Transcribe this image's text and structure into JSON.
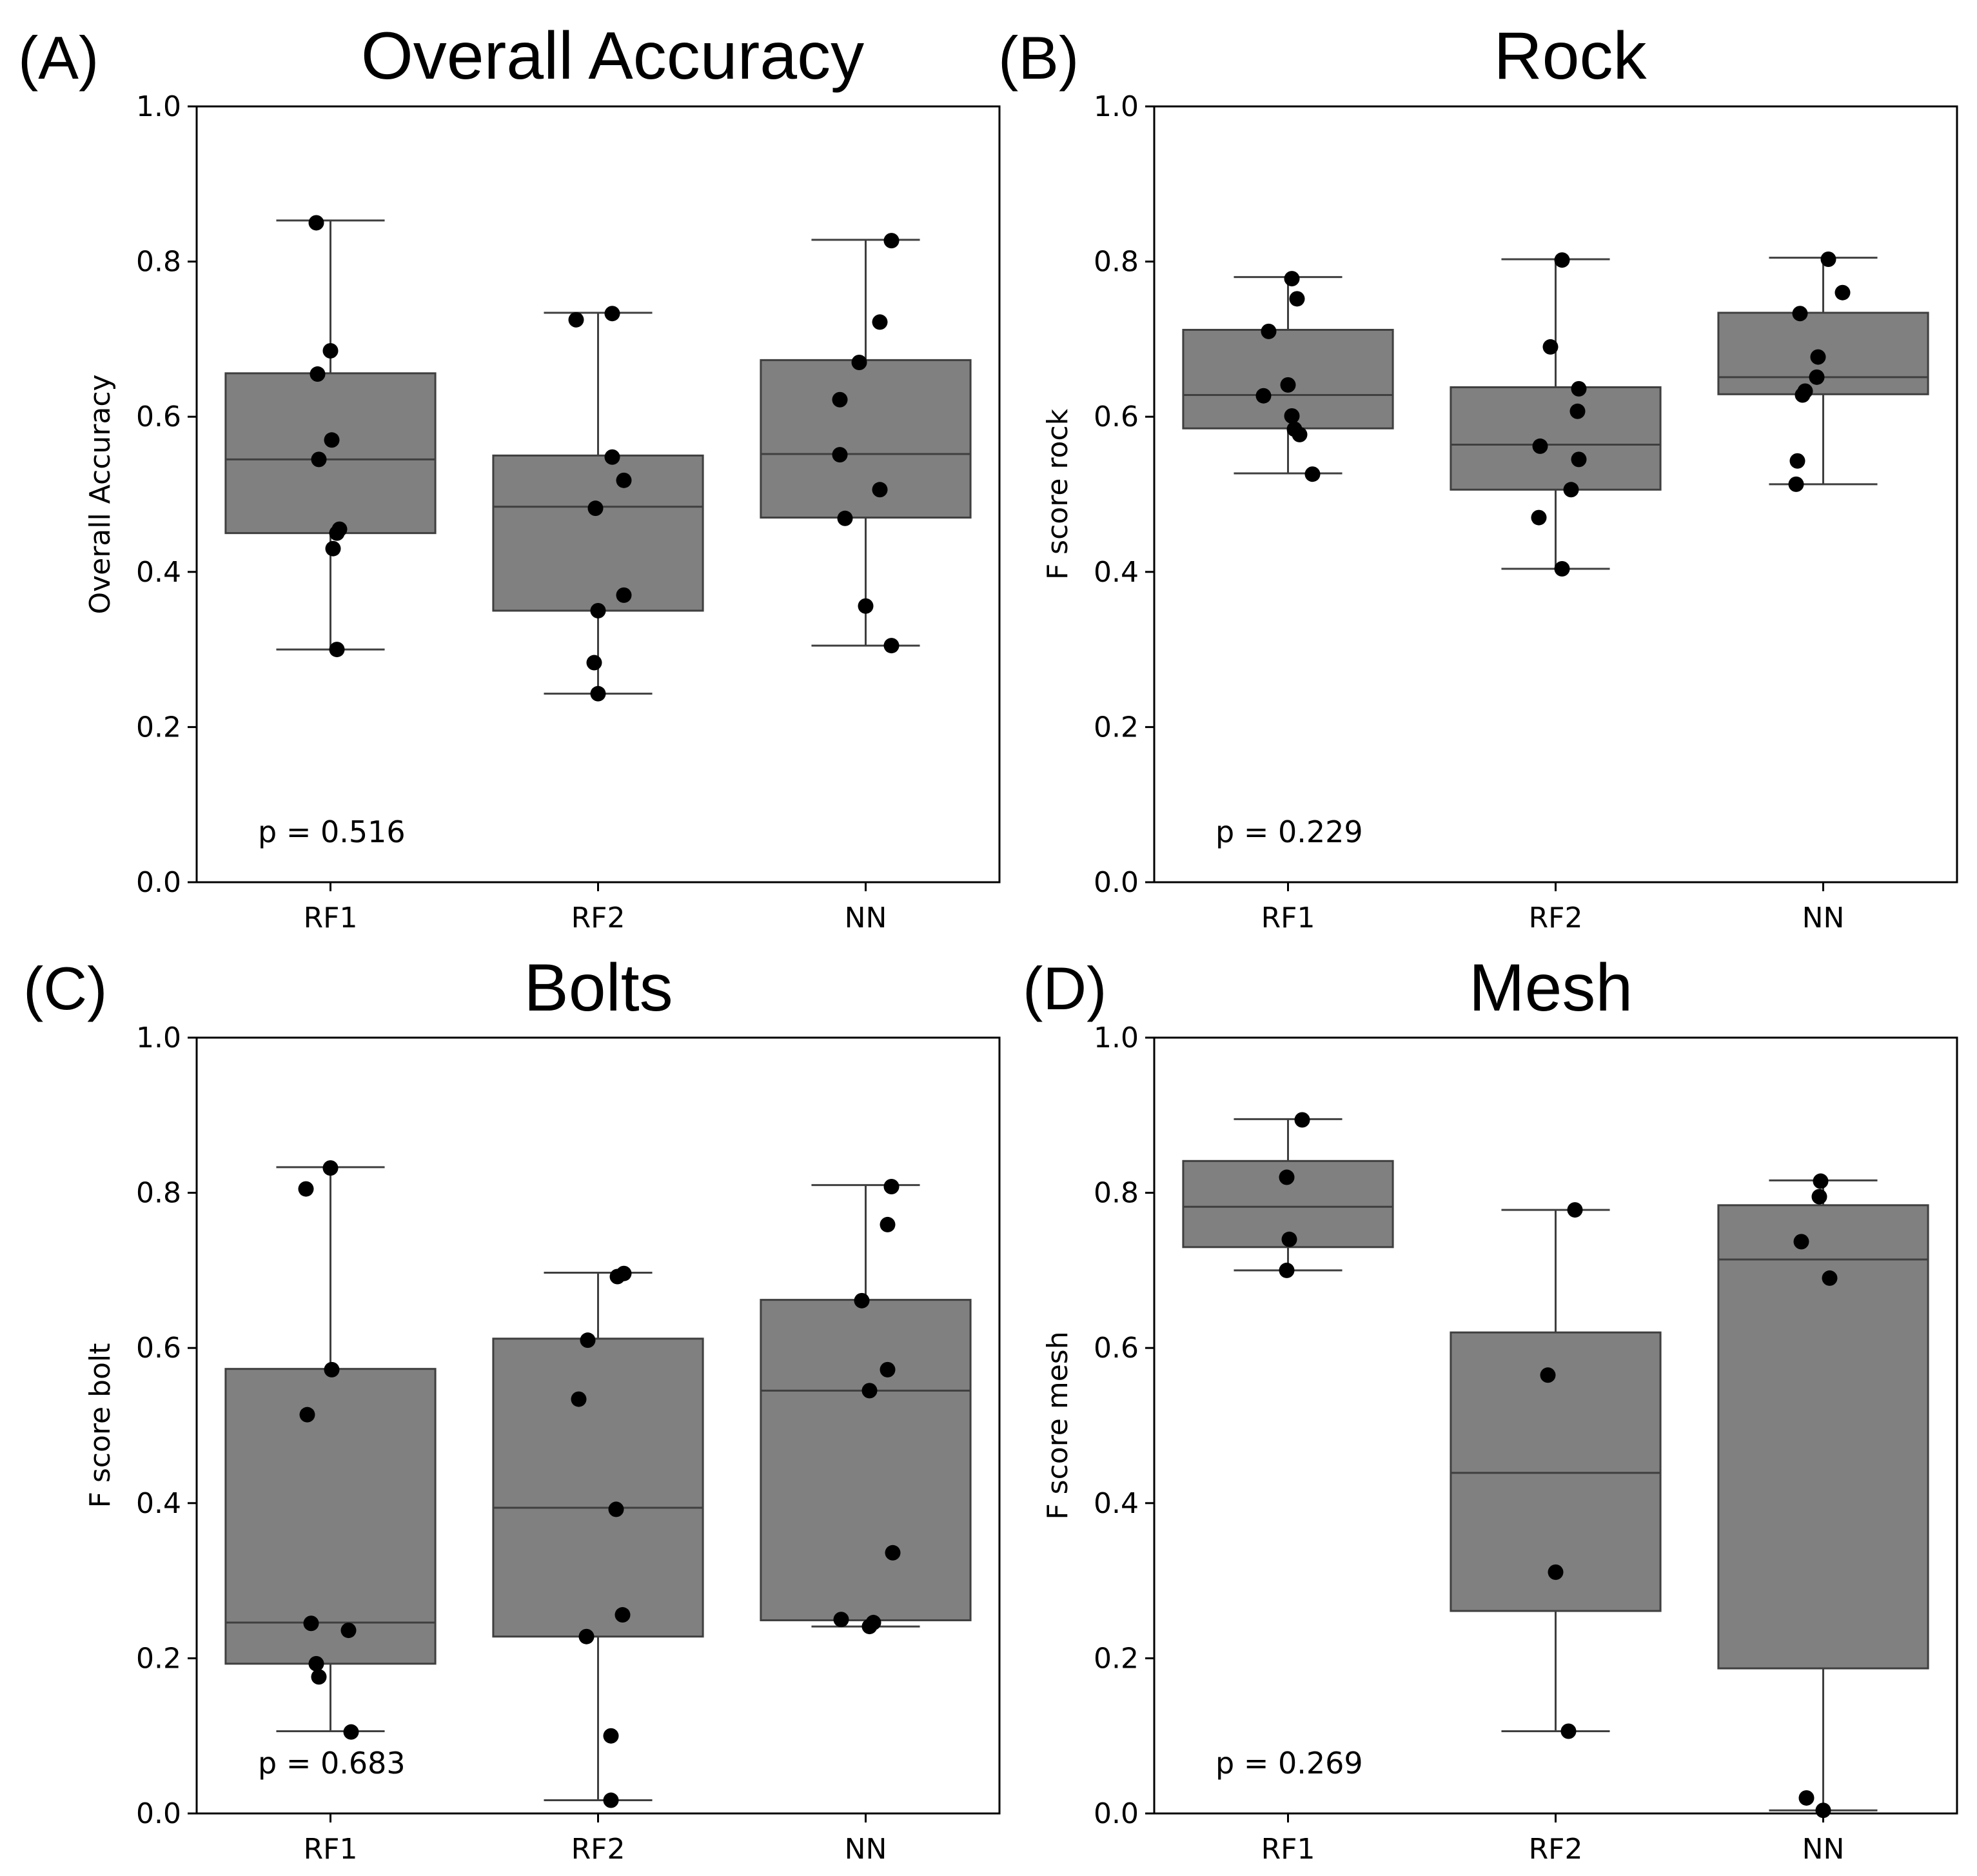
{
  "chart_data": [
    {
      "type": "box",
      "panel_letter": "(A)",
      "title": "Overall Accuracy",
      "ylabel": "Overall Accuracy",
      "ylim": [
        0,
        1
      ],
      "yticks": [
        "0.0",
        "0.2",
        "0.4",
        "0.6",
        "0.8",
        "1.0"
      ],
      "categories": [
        "RF1",
        "RF2",
        "NN"
      ],
      "annotation": "p = 0.516",
      "boxes": [
        {
          "category": "RF1",
          "whisker_low": 0.3,
          "q1": 0.45,
          "median": 0.545,
          "q3": 0.656,
          "whisker_high": 0.853,
          "points": [
            0.85,
            0.685,
            0.655,
            0.57,
            0.545,
            0.455,
            0.45,
            0.43,
            0.3
          ]
        },
        {
          "category": "RF2",
          "whisker_low": 0.243,
          "q1": 0.35,
          "median": 0.484,
          "q3": 0.55,
          "whisker_high": 0.734,
          "points": [
            0.733,
            0.725,
            0.548,
            0.518,
            0.482,
            0.37,
            0.35,
            0.283,
            0.243
          ]
        },
        {
          "category": "NN",
          "whisker_low": 0.305,
          "q1": 0.47,
          "median": 0.552,
          "q3": 0.673,
          "whisker_high": 0.828,
          "points": [
            0.827,
            0.722,
            0.67,
            0.622,
            0.551,
            0.506,
            0.469,
            0.356,
            0.305
          ]
        }
      ]
    },
    {
      "type": "box",
      "panel_letter": "(B)",
      "title": "Rock",
      "ylabel": "F score rock",
      "ylim": [
        0,
        1
      ],
      "yticks": [
        "0.0",
        "0.2",
        "0.4",
        "0.6",
        "0.8",
        "1.0"
      ],
      "categories": [
        "RF1",
        "RF2",
        "NN"
      ],
      "annotation": "p = 0.229",
      "boxes": [
        {
          "category": "RF1",
          "whisker_low": 0.527,
          "q1": 0.585,
          "median": 0.628,
          "q3": 0.712,
          "whisker_high": 0.78,
          "points": [
            0.778,
            0.752,
            0.71,
            0.641,
            0.627,
            0.601,
            0.584,
            0.577,
            0.526
          ]
        },
        {
          "category": "RF2",
          "whisker_low": 0.404,
          "q1": 0.506,
          "median": 0.564,
          "q3": 0.638,
          "whisker_high": 0.803,
          "points": [
            0.802,
            0.69,
            0.636,
            0.607,
            0.562,
            0.545,
            0.506,
            0.47,
            0.404
          ]
        },
        {
          "category": "NN",
          "whisker_low": 0.513,
          "q1": 0.629,
          "median": 0.651,
          "q3": 0.734,
          "whisker_high": 0.805,
          "points": [
            0.803,
            0.76,
            0.733,
            0.677,
            0.651,
            0.633,
            0.628,
            0.543,
            0.513
          ]
        }
      ]
    },
    {
      "type": "box",
      "panel_letter": "(C)",
      "title": "Bolts",
      "ylabel": "F score bolt",
      "ylim": [
        0,
        1
      ],
      "yticks": [
        "0.0",
        "0.2",
        "0.4",
        "0.6",
        "0.8",
        "1.0"
      ],
      "categories": [
        "RF1",
        "RF2",
        "NN"
      ],
      "annotation": "p = 0.683",
      "boxes": [
        {
          "category": "RF1",
          "whisker_low": 0.106,
          "q1": 0.193,
          "median": 0.246,
          "q3": 0.573,
          "whisker_high": 0.833,
          "points": [
            0.832,
            0.805,
            0.572,
            0.514,
            0.245,
            0.236,
            0.193,
            0.176,
            0.105
          ]
        },
        {
          "category": "RF2",
          "whisker_low": 0.017,
          "q1": 0.228,
          "median": 0.394,
          "q3": 0.612,
          "whisker_high": 0.697,
          "points": [
            0.696,
            0.692,
            0.61,
            0.534,
            0.392,
            0.256,
            0.228,
            0.1,
            0.017
          ]
        },
        {
          "category": "NN",
          "whisker_low": 0.241,
          "q1": 0.249,
          "median": 0.545,
          "q3": 0.662,
          "whisker_high": 0.81,
          "points": [
            0.808,
            0.759,
            0.661,
            0.572,
            0.545,
            0.336,
            0.25,
            0.246,
            0.241
          ]
        }
      ]
    },
    {
      "type": "box",
      "panel_letter": "(D)",
      "title": "Mesh",
      "ylabel": "F score mesh",
      "ylim": [
        0,
        1
      ],
      "yticks": [
        "0.0",
        "0.2",
        "0.4",
        "0.6",
        "0.8",
        "1.0"
      ],
      "categories": [
        "RF1",
        "RF2",
        "NN"
      ],
      "annotation": "p = 0.269",
      "boxes": [
        {
          "category": "RF1",
          "whisker_low": 0.7,
          "q1": 0.73,
          "median": 0.782,
          "q3": 0.841,
          "whisker_high": 0.895,
          "points": [
            0.894,
            0.82,
            0.74,
            0.7
          ]
        },
        {
          "category": "RF2",
          "whisker_low": 0.106,
          "q1": 0.261,
          "median": 0.439,
          "q3": 0.62,
          "whisker_high": 0.778,
          "points": [
            0.778,
            0.565,
            0.311,
            0.106
          ]
        },
        {
          "category": "NN",
          "whisker_low": 0.004,
          "q1": 0.187,
          "median": 0.714,
          "q3": 0.784,
          "whisker_high": 0.816,
          "points": [
            0.815,
            0.795,
            0.737,
            0.69,
            0.02,
            0.004
          ]
        }
      ]
    }
  ]
}
